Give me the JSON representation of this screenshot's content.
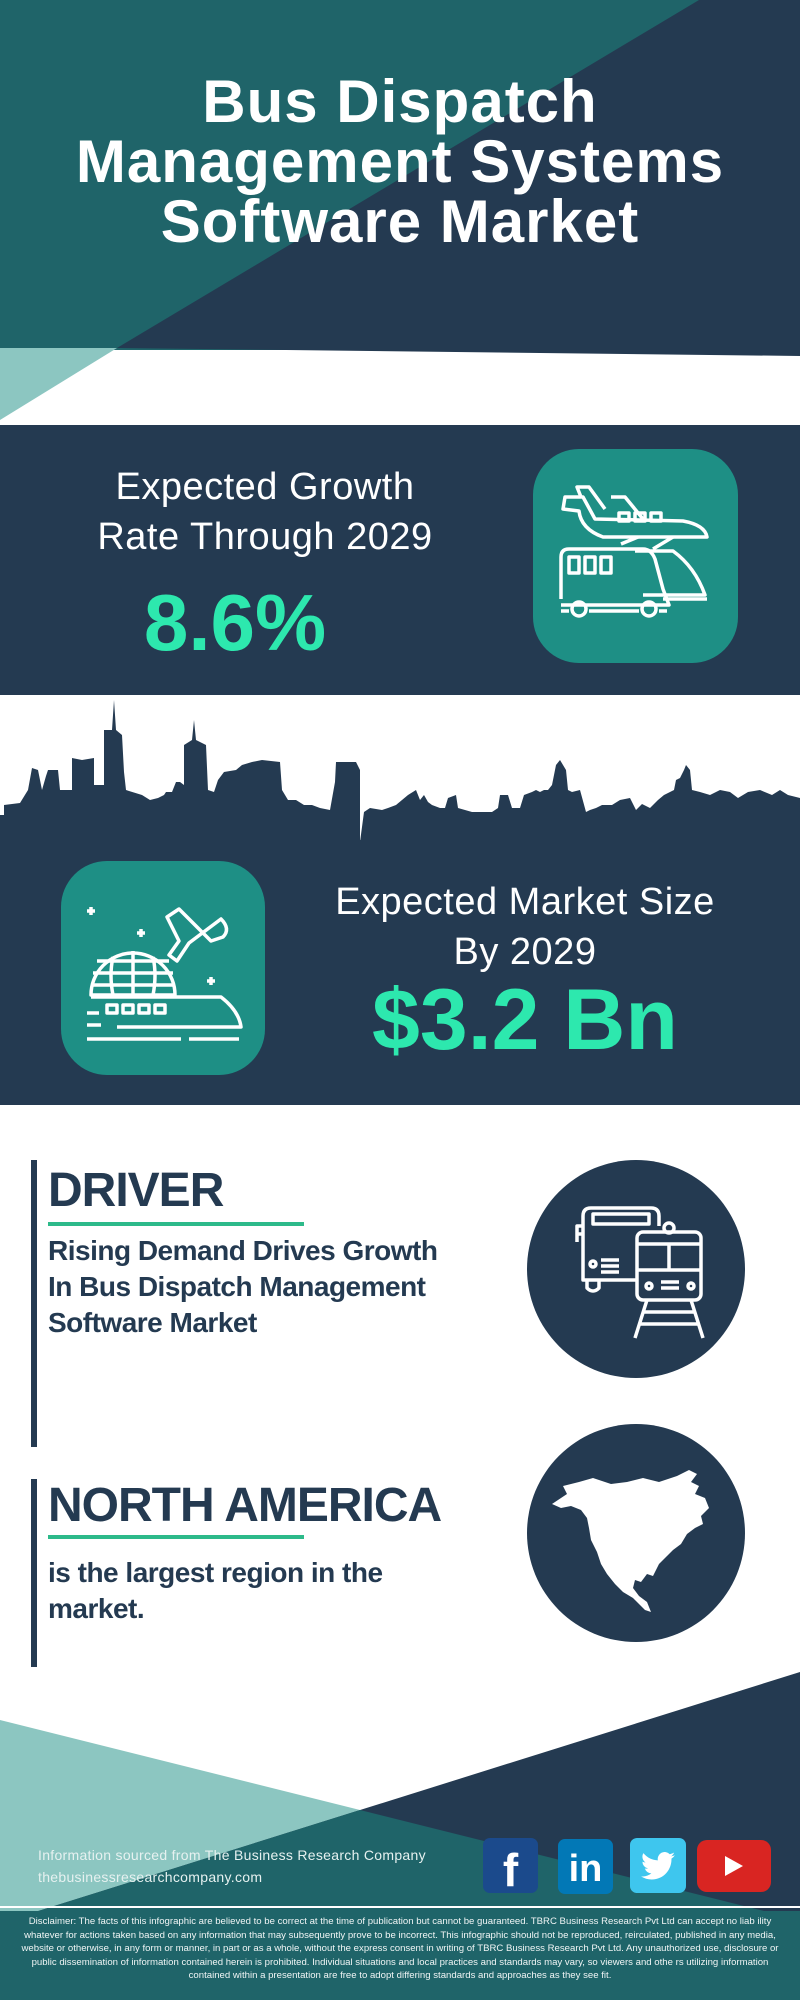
{
  "header": {
    "title_lines": [
      "Bus Dispatch",
      "Management Systems",
      "Software Market"
    ]
  },
  "growth": {
    "label_lines": [
      "Expected Growth",
      "Rate Through 2029"
    ],
    "value": "8.6%",
    "icon": "plane-bus-train-icon"
  },
  "market_size": {
    "label_lines": [
      "Expected Market Size",
      "By 2029"
    ],
    "value": "$3.2 Bn",
    "icon": "globe-plane-train-icon"
  },
  "driver": {
    "heading": "DRIVER",
    "text_lines": [
      "Rising Demand Drives Growth",
      "In Bus Dispatch Management",
      "Software Market"
    ],
    "icon": "bus-train-icon"
  },
  "region": {
    "heading": "NORTH AMERICA",
    "text_lines": [
      "is the largest region in the",
      "market."
    ],
    "icon": "north-america-map-icon"
  },
  "footer": {
    "source": "Information sourced from The Business Research Company",
    "website": "thebusinessresearchcompany.com",
    "social": [
      {
        "name": "facebook",
        "glyph": "f",
        "color": "#1b4a8c"
      },
      {
        "name": "linkedin",
        "glyph": "in",
        "color": "#0278b6"
      },
      {
        "name": "twitter",
        "glyph": "",
        "color": "#3ec6ee"
      },
      {
        "name": "youtube",
        "glyph": "",
        "color": "#d92522"
      }
    ],
    "disclaimer": "Disclaimer: The facts of this infographic are believed to be correct at the time of publication but cannot be guaranteed. TBRC Business Research Pvt Ltd can accept no liab ility whatever for actions taken based on any information that may subsequently prove to be incorrect. This infographic should not be reproduced, reirculated, published in any media, website or otherwise, in any form or manner, in part or as a whole, without the express consent in writing of TBRC Business Research Pvt Ltd. Any unauthorized use, disclosure or public dissemination of information contained herein is prohibited. Individual situations and local practices and standards may vary, so viewers and othe rs utilizing information contained within a presentation are free to adopt differing standards and approaches as they see fit."
  },
  "colors": {
    "navy": "#243a51",
    "teal": "#1f6469",
    "light_teal": "#8cc6c1",
    "icon_box": "#1e8f85",
    "accent_green": "#2de8ae",
    "underline": "#2dba8a"
  }
}
